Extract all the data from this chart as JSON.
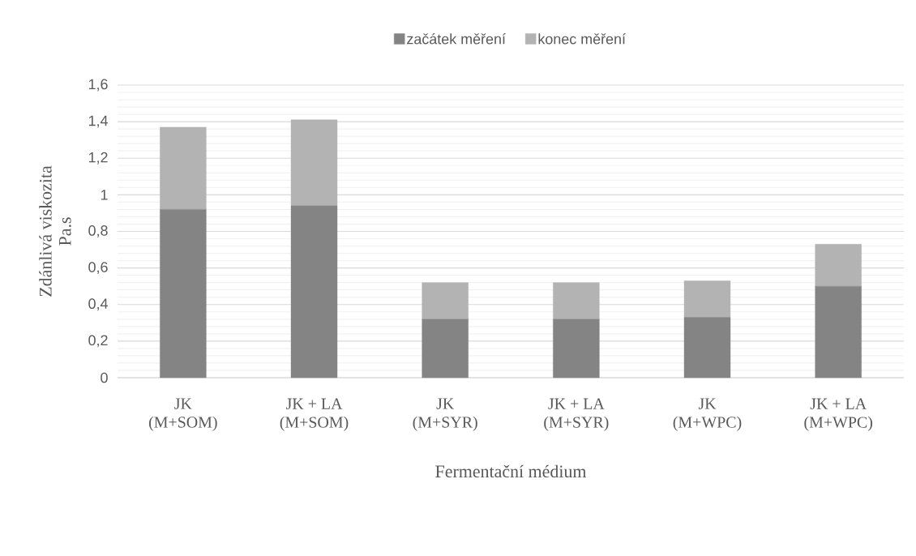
{
  "chart_data": {
    "type": "bar",
    "stacked": true,
    "xlabel": "Fermentační médium",
    "ylabel": "Zdánlivá viskozita Pa.s",
    "categories": [
      "JK (M+SOM)",
      "JK + LA (M+SOM)",
      "JK (M+SYR)",
      "JK + LA (M+SYR)",
      "JK (M+WPC)",
      "JK + LA (M+WPC)"
    ],
    "series": [
      {
        "name": "začátek měření",
        "color": "#848484",
        "values": [
          0.92,
          0.94,
          0.32,
          0.32,
          0.33,
          0.5
        ]
      },
      {
        "name": "konec měření",
        "color": "#b3b3b3",
        "values": [
          0.45,
          0.47,
          0.2,
          0.2,
          0.2,
          0.23
        ]
      }
    ],
    "ylim": [
      0,
      1.6
    ],
    "yticks": [
      0,
      {
        "value": 0.2,
        "label": "0,2"
      },
      {
        "value": 0.4,
        "label": "0,4"
      },
      {
        "value": 0.6,
        "label": "0,6"
      },
      {
        "value": 0.8,
        "label": "0,8"
      },
      1,
      {
        "value": 1.2,
        "label": "1,2"
      },
      {
        "value": 1.4,
        "label": "1,4"
      },
      {
        "value": 1.6,
        "label": "1,6"
      }
    ],
    "grid": "y",
    "legend": "top"
  }
}
